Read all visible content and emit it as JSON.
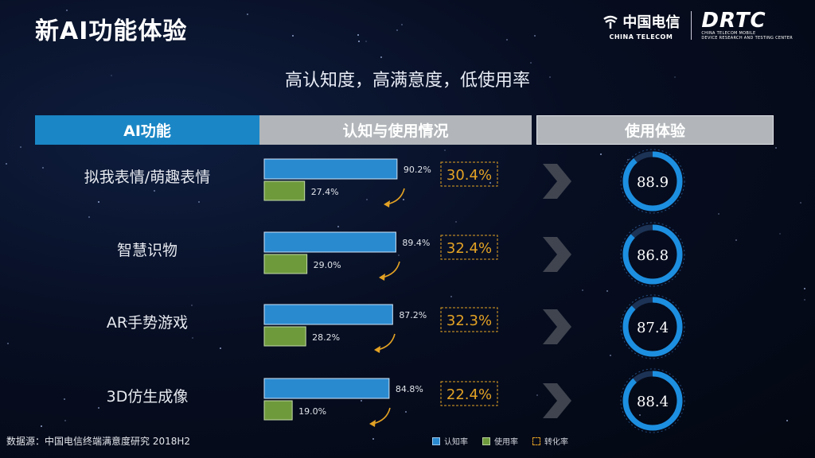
{
  "title": "新AI功能体验",
  "subtitle": "高认知度，高满意度，低使用率",
  "logos": {
    "telecom_cn": "中国电信",
    "telecom_en": "CHINA TELECOM",
    "rtc_mark": "DRTC",
    "rtc_sub1": "CHINA TELECOM MOBILE",
    "rtc_sub2": "DEVICE RESEARCH AND TESTING CENTER"
  },
  "headers": {
    "ai": "AI功能",
    "usage": "认知与使用情况",
    "experience": "使用体验"
  },
  "legend": {
    "awareness": "认知率",
    "usage": "使用率",
    "conversion": "转化率"
  },
  "source": "数据源：中国电信终端满意度研究 2018H2",
  "colors": {
    "awareness": "#2a8ad0",
    "usage": "#6e9a3c",
    "conversion": "#e3a224",
    "ring": "#1d8fe0",
    "header_ai": "#1a86c5",
    "header_grey": "#b2b6ba"
  },
  "chart_data": {
    "type": "bar",
    "categories": [
      "拟我表情/萌趣表情",
      "智慧识物",
      "AR手势游戏",
      "3D仿生成像"
    ],
    "series": [
      {
        "name": "认知率",
        "values": [
          90.2,
          89.4,
          87.2,
          84.8
        ],
        "labels": [
          "90.2%",
          "89.4%",
          "87.2%",
          "84.8%"
        ]
      },
      {
        "name": "使用率",
        "values": [
          27.4,
          29.0,
          28.2,
          19.0
        ],
        "labels": [
          "27.4%",
          "29.0%",
          "28.2%",
          "19.0%"
        ]
      },
      {
        "name": "转化率",
        "values": [
          30.4,
          32.4,
          32.3,
          22.4
        ],
        "labels": [
          "30.4%",
          "32.4%",
          "32.3%",
          "22.4%"
        ]
      }
    ],
    "experience_scores": [
      88.9,
      86.8,
      87.4,
      88.4
    ],
    "experience_labels": [
      "88.9",
      "86.8",
      "87.4",
      "88.4"
    ],
    "xlim": [
      0,
      100
    ],
    "score_range": [
      0,
      100
    ]
  }
}
